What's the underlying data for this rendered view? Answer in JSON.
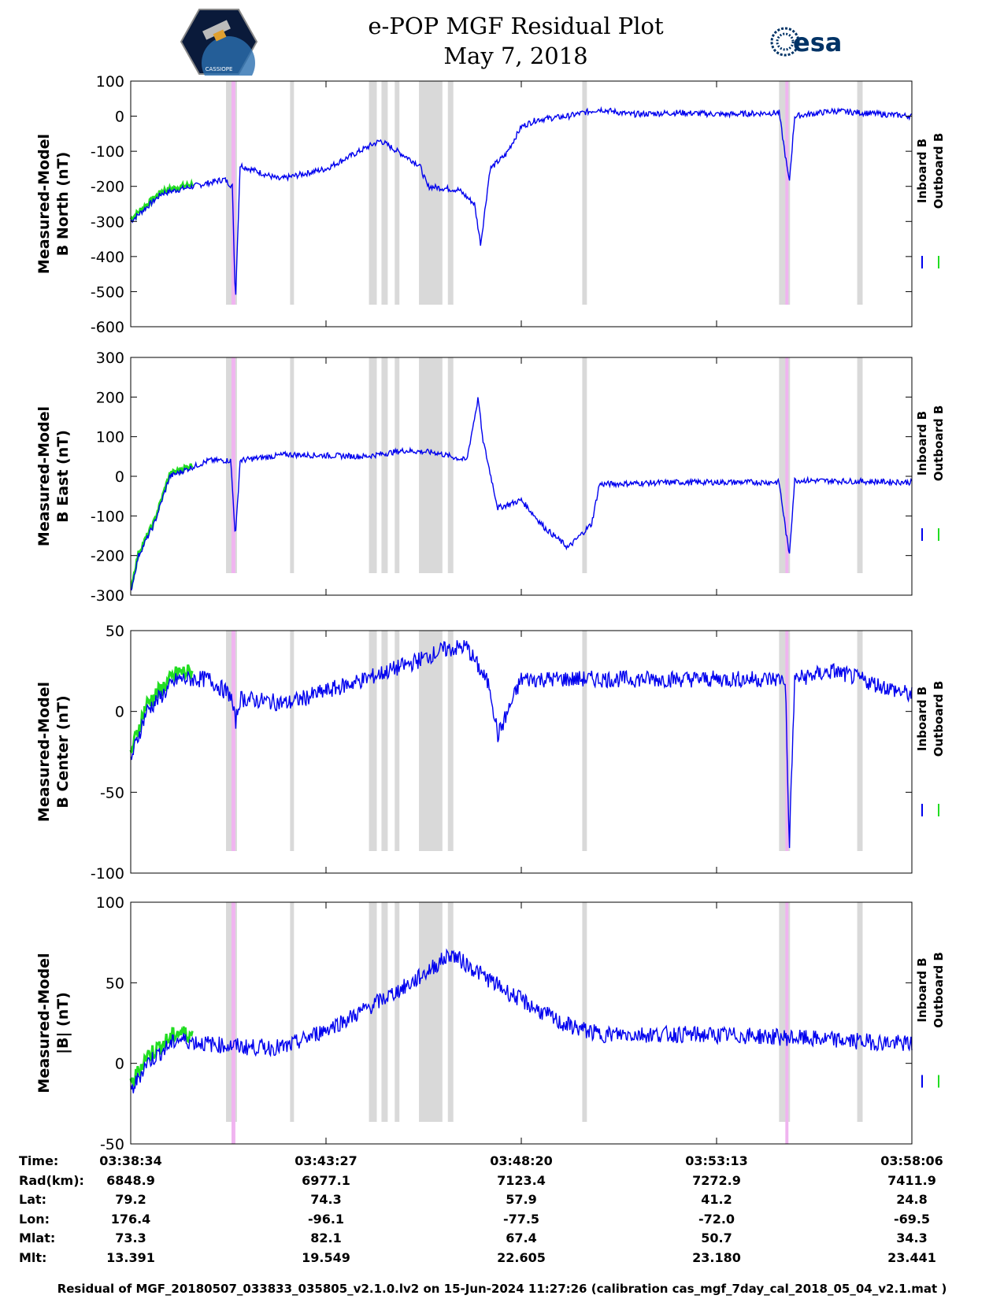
{
  "header": {
    "title": "e-POP MGF Residual Plot",
    "date": "May 7, 2018",
    "logo_left_text": "CASSIOPE",
    "logo_right_text": "esa"
  },
  "colors": {
    "inboard": "#0000ee",
    "outboard": "#22dd22",
    "gray_band": "#d9d9d9",
    "pink_band": "#f0b4f0"
  },
  "chart_data": [
    {
      "type": "line",
      "ylabel_line1": "Measured-Model",
      "ylabel_line2": "B North (nT)",
      "ylim": [
        -600,
        100
      ],
      "yticks": [
        100,
        0,
        -100,
        -200,
        -300,
        -400,
        -500,
        -600
      ],
      "legend": [
        "Inboard B",
        "Outboard B"
      ],
      "series_keypoints": {
        "x": [
          0,
          0.04,
          0.08,
          0.12,
          0.13,
          0.134,
          0.14,
          0.19,
          0.25,
          0.31,
          0.32,
          0.37,
          0.38,
          0.42,
          0.44,
          0.448,
          0.46,
          0.48,
          0.5,
          0.52,
          0.56,
          0.6,
          0.64,
          0.7,
          0.76,
          0.83,
          0.843,
          0.85,
          0.9,
          1.0
        ],
        "y": [
          -300,
          -220,
          -200,
          -180,
          -200,
          -530,
          -140,
          -180,
          -150,
          -80,
          -70,
          -140,
          -200,
          -210,
          -250,
          -365,
          -150,
          -110,
          -30,
          -10,
          0,
          20,
          5,
          10,
          5,
          10,
          -190,
          0,
          15,
          0
        ]
      }
    },
    {
      "type": "line",
      "ylabel_line1": "Measured-Model",
      "ylabel_line2": "B East (nT)",
      "ylim": [
        -300,
        300
      ],
      "yticks": [
        300,
        200,
        100,
        0,
        -100,
        -200,
        -300
      ],
      "legend": [
        "Inboard B",
        "Outboard B"
      ],
      "series_keypoints": {
        "x": [
          0,
          0.01,
          0.03,
          0.05,
          0.1,
          0.128,
          0.134,
          0.14,
          0.2,
          0.3,
          0.35,
          0.39,
          0.43,
          0.445,
          0.45,
          0.47,
          0.5,
          0.53,
          0.56,
          0.59,
          0.6,
          0.7,
          0.83,
          0.843,
          0.85,
          1.0
        ],
        "y": [
          -290,
          -200,
          -120,
          0,
          40,
          40,
          -155,
          40,
          55,
          50,
          65,
          60,
          40,
          200,
          100,
          -80,
          -60,
          -130,
          -180,
          -120,
          -20,
          -15,
          -15,
          -200,
          -10,
          -15
        ]
      }
    },
    {
      "type": "line",
      "ylabel_line1": "Measured-Model",
      "ylabel_line2": "B Center (nT)",
      "ylim": [
        -100,
        50
      ],
      "yticks": [
        50,
        0,
        -50,
        -100
      ],
      "legend": [
        "Inboard B",
        "Outboard B"
      ],
      "series_keypoints": {
        "x": [
          0,
          0.02,
          0.06,
          0.1,
          0.128,
          0.134,
          0.14,
          0.2,
          0.3,
          0.36,
          0.4,
          0.43,
          0.46,
          0.47,
          0.5,
          0.6,
          0.7,
          0.8,
          0.838,
          0.843,
          0.85,
          0.9,
          1.0
        ],
        "y": [
          -30,
          0,
          20,
          20,
          10,
          -7,
          8,
          5,
          20,
          30,
          38,
          40,
          15,
          -15,
          20,
          20,
          20,
          20,
          20,
          -85,
          20,
          25,
          10
        ]
      }
    },
    {
      "type": "line",
      "ylabel_line1": "Measured-Model",
      "ylabel_line2": "|B| (nT)",
      "ylim": [
        -50,
        100
      ],
      "yticks": [
        100,
        50,
        0,
        -50
      ],
      "legend": [
        "Inboard B",
        "Outboard B"
      ],
      "series_keypoints": {
        "x": [
          0,
          0.02,
          0.06,
          0.1,
          0.15,
          0.2,
          0.28,
          0.36,
          0.41,
          0.48,
          0.55,
          0.6,
          0.7,
          0.8,
          1.0
        ],
        "y": [
          -18,
          0,
          15,
          12,
          10,
          10,
          28,
          50,
          68,
          45,
          25,
          18,
          18,
          17,
          12
        ]
      }
    }
  ],
  "bands": {
    "gray": [
      [
        0.122,
        0.136
      ],
      [
        0.204,
        0.209
      ],
      [
        0.305,
        0.315
      ],
      [
        0.321,
        0.329
      ],
      [
        0.338,
        0.344
      ],
      [
        0.369,
        0.399
      ],
      [
        0.406,
        0.413
      ],
      [
        0.578,
        0.584
      ],
      [
        0.83,
        0.844
      ],
      [
        0.93,
        0.937
      ]
    ],
    "pink": [
      [
        0.127,
        0.136
      ],
      [
        0.836,
        0.844
      ]
    ]
  },
  "ephemeris": {
    "rows": [
      {
        "label": "Time:",
        "values": [
          "03:38:34",
          "03:43:27",
          "03:48:20",
          "03:53:13",
          "03:58:06"
        ]
      },
      {
        "label": "Rad(km):",
        "values": [
          "6848.9",
          "6977.1",
          "7123.4",
          "7272.9",
          "7411.9"
        ]
      },
      {
        "label": "Lat:",
        "values": [
          "79.2",
          "74.3",
          "57.9",
          "41.2",
          "24.8"
        ]
      },
      {
        "label": "Lon:",
        "values": [
          "176.4",
          "-96.1",
          "-77.5",
          "-72.0",
          "-69.5"
        ]
      },
      {
        "label": "Mlat:",
        "values": [
          "73.3",
          "82.1",
          "67.4",
          "50.7",
          "34.3"
        ]
      },
      {
        "label": "Mlt:",
        "values": [
          "13.391",
          "19.549",
          "22.605",
          "23.180",
          "23.441"
        ]
      }
    ]
  },
  "footer": "Residual of MGF_20180507_033833_035805_v2.1.0.lv2 on 15-Jun-2024 11:27:26 (calibration cas_mgf_7day_cal_2018_05_04_v2.1.mat )"
}
